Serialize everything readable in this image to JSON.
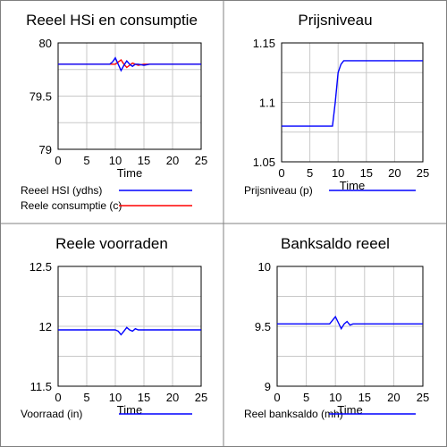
{
  "colors": {
    "blue": "#0000ff",
    "red": "#ff0000",
    "axis": "#000000",
    "grid": "#c8c8c8",
    "border": "#808080"
  },
  "chart_data": [
    {
      "type": "line",
      "title": "Reeel HSi en consumptie",
      "xlabel": "Time",
      "ylabel": "",
      "xlim": [
        0,
        25
      ],
      "ylim": [
        79,
        80
      ],
      "xticks": [
        "0",
        "5",
        "10",
        "15",
        "20",
        "25"
      ],
      "yticks": [
        "79",
        "79.5",
        "80"
      ],
      "grid": true,
      "legend_position": "bottom",
      "series": [
        {
          "name": "Reeel HSI (ydhs)",
          "color": "#0000ff",
          "x": [
            0,
            9,
            9.5,
            10,
            10.5,
            11,
            11.5,
            12,
            12.5,
            13,
            13.5,
            14,
            15,
            16,
            25
          ],
          "y": [
            79.8,
            79.8,
            79.82,
            79.86,
            79.8,
            79.74,
            79.79,
            79.83,
            79.8,
            79.78,
            79.8,
            79.8,
            79.79,
            79.8,
            79.8
          ]
        },
        {
          "name": "Reele consumptie (c)",
          "color": "#ff0000",
          "x": [
            0,
            10,
            10.5,
            11,
            11.5,
            12,
            12.5,
            13,
            13.5,
            14,
            15,
            16,
            25
          ],
          "y": [
            79.8,
            79.8,
            79.82,
            79.84,
            79.8,
            79.77,
            79.79,
            79.81,
            79.8,
            79.79,
            79.8,
            79.8,
            79.8
          ]
        }
      ]
    },
    {
      "type": "line",
      "title": "Prijsniveau",
      "xlabel": "Time",
      "ylabel": "",
      "xlim": [
        0,
        25
      ],
      "ylim": [
        1.05,
        1.15
      ],
      "xticks": [
        "0",
        "5",
        "10",
        "15",
        "20",
        "25"
      ],
      "yticks": [
        "1.05",
        "1.1",
        "1.15"
      ],
      "grid": true,
      "legend_position": "bottom",
      "series": [
        {
          "name": "Prijsniveau (p)",
          "color": "#0000ff",
          "x": [
            0,
            9,
            9.5,
            10,
            10.5,
            11,
            25
          ],
          "y": [
            1.08,
            1.08,
            1.1,
            1.125,
            1.132,
            1.135,
            1.135
          ]
        }
      ]
    },
    {
      "type": "line",
      "title": "Reele voorraden",
      "xlabel": "Time",
      "ylabel": "",
      "xlim": [
        0,
        25
      ],
      "ylim": [
        11.5,
        12.5
      ],
      "xticks": [
        "0",
        "5",
        "10",
        "15",
        "20",
        "25"
      ],
      "yticks": [
        "11.5",
        "12",
        "12.5"
      ],
      "grid": true,
      "legend_position": "bottom",
      "series": [
        {
          "name": "Voorraad (in)",
          "color": "#0000ff",
          "x": [
            0,
            10,
            10.5,
            11,
            11.5,
            12,
            12.5,
            13,
            13.5,
            14,
            15,
            25
          ],
          "y": [
            11.97,
            11.97,
            11.96,
            11.93,
            11.96,
            11.99,
            11.97,
            11.96,
            11.98,
            11.97,
            11.97,
            11.97
          ]
        }
      ]
    },
    {
      "type": "line",
      "title": "Banksaldo reeel",
      "xlabel": "Time",
      "ylabel": "",
      "xlim": [
        0,
        25
      ],
      "ylim": [
        9,
        10
      ],
      "xticks": [
        "0",
        "5",
        "10",
        "15",
        "20",
        "25"
      ],
      "yticks": [
        "9",
        "9.5",
        "10"
      ],
      "grid": true,
      "legend_position": "bottom",
      "series": [
        {
          "name": "Reel banksaldo (mh)",
          "color": "#0000ff",
          "x": [
            0,
            9,
            9.5,
            10,
            10.5,
            11,
            11.5,
            12,
            12.5,
            13,
            14,
            25
          ],
          "y": [
            9.52,
            9.52,
            9.55,
            9.58,
            9.53,
            9.48,
            9.52,
            9.54,
            9.51,
            9.52,
            9.52,
            9.52
          ]
        }
      ]
    }
  ]
}
